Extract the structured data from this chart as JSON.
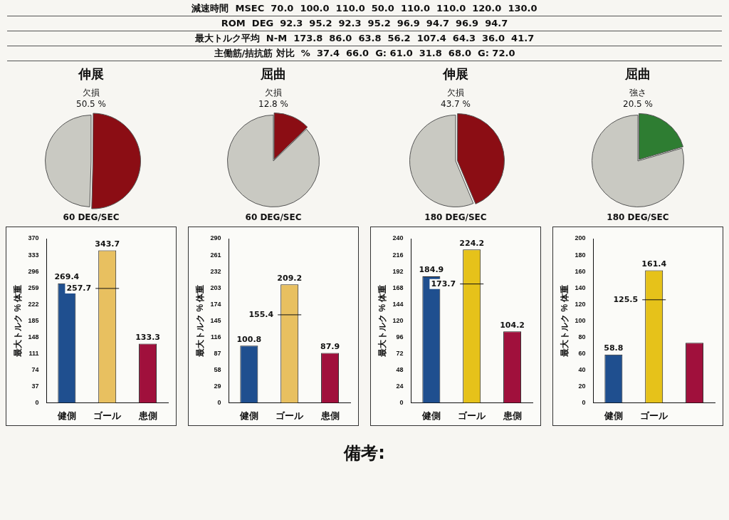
{
  "chart_data": [
    {
      "type": "other",
      "annotations": [
        "減速時間  MSEC  70.0  100.0  110.0  50.0  110.0  110.0  120.0  130.0",
        "ROM  DEG  92.3  95.2  92.3  95.2  96.9  94.7  96.9  94.7",
        "最大トルク平均  N-M  173.8  86.0  63.8  56.2  107.4  64.3  36.0  41.7",
        "主働筋/拮抗筋 対比  %  37.4  66.0  G: 61.0  31.8  68.0  G: 72.0"
      ]
    },
    {
      "type": "pie",
      "title": "伸展",
      "xlabel": "60 DEG/SEC",
      "categories": [
        "欠損",
        null
      ],
      "values": [
        50.5,
        49.5
      ],
      "colors": [
        "#8b0d14",
        "#c9c9c2"
      ],
      "value_labels": [
        "50.5 %",
        null
      ]
    },
    {
      "type": "pie",
      "title": "屈曲",
      "xlabel": "60 DEG/SEC",
      "categories": [
        "欠損",
        null
      ],
      "values": [
        12.8,
        87.2
      ],
      "colors": [
        "#8b0d14",
        "#c9c9c2"
      ],
      "value_labels": [
        "12.8 %",
        null
      ]
    },
    {
      "type": "pie",
      "title": "伸展",
      "xlabel": "180 DEG/SEC",
      "categories": [
        "欠損",
        null
      ],
      "values": [
        43.7,
        56.3
      ],
      "colors": [
        "#8b0d14",
        "#c9c9c2"
      ],
      "value_labels": [
        "43.7 %",
        null
      ]
    },
    {
      "type": "pie",
      "title": "屈曲",
      "xlabel": "180 DEG/SEC",
      "categories": [
        "強さ",
        null
      ],
      "values": [
        20.5,
        79.5
      ],
      "colors": [
        "#2e7d32",
        "#c9c9c2"
      ],
      "value_labels": [
        "20.5 %",
        null
      ]
    },
    {
      "type": "bar",
      "ylabel": "最大トルク % 体重",
      "categories": [
        "健側",
        "ゴール",
        "患側"
      ],
      "values": [
        269.4,
        343.7,
        133.3
      ],
      "colors": [
        "#1f4f8f",
        "#e8c060",
        "#a0103c"
      ],
      "ylim": [
        0,
        370
      ],
      "yticks": [
        0,
        37,
        74,
        111,
        148,
        185,
        222,
        259,
        296,
        333,
        370
      ],
      "data_labels": true,
      "ref_lines": [
        {
          "axis": "y",
          "value": 257.7,
          "label": "257.7"
        }
      ]
    },
    {
      "type": "bar",
      "ylabel": "最大トルク % 体重",
      "categories": [
        "健側",
        "ゴール",
        "患側"
      ],
      "values": [
        100.8,
        209.2,
        87.9
      ],
      "colors": [
        "#1f4f8f",
        "#e8c060",
        "#a0103c"
      ],
      "ylim": [
        0,
        290
      ],
      "yticks": [
        0,
        29,
        58,
        87,
        116,
        145,
        174,
        203,
        232,
        261,
        290
      ],
      "data_labels": true,
      "ref_lines": [
        {
          "axis": "y",
          "value": 155.4,
          "label": "155.4"
        }
      ]
    },
    {
      "type": "bar",
      "ylabel": "最大トルク % 体重",
      "categories": [
        "健側",
        "ゴール",
        "患側"
      ],
      "values": [
        184.9,
        224.2,
        104.2
      ],
      "colors": [
        "#1f4f8f",
        "#e6c21a",
        "#a0103c"
      ],
      "ylim": [
        0,
        240
      ],
      "yticks": [
        0,
        24,
        48,
        72,
        96,
        120,
        144,
        168,
        192,
        216,
        240
      ],
      "data_labels": true,
      "ref_lines": [
        {
          "axis": "y",
          "value": 173.7,
          "label": "173.7"
        }
      ]
    },
    {
      "type": "bar",
      "ylabel": "最大トルク % 体重",
      "categories": [
        "健側",
        "ゴール",
        null
      ],
      "values": [
        58.8,
        161.4,
        73
      ],
      "colors": [
        "#1f4f8f",
        "#e6c21a",
        "#a0103c"
      ],
      "ylim": [
        0,
        200
      ],
      "yticks": [
        0,
        20,
        40,
        60,
        80,
        100,
        120,
        140,
        160,
        180,
        200
      ],
      "value_labels": [
        "58.8",
        "161.4",
        null
      ],
      "ref_lines": [
        {
          "axis": "y",
          "value": 125.5,
          "label": "125.5"
        }
      ]
    },
    {
      "type": "other",
      "annotations": [
        "備考:"
      ]
    }
  ]
}
